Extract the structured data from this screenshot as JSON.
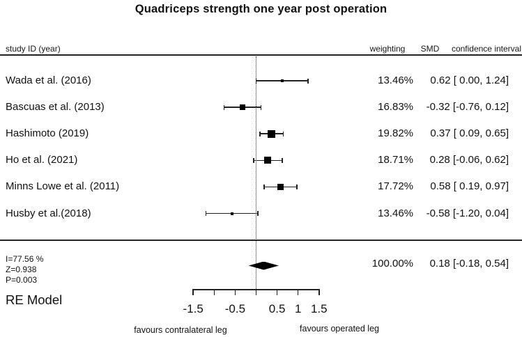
{
  "title": "Quadriceps strength one year post operation",
  "columns": {
    "study": "study ID (year)",
    "weighting": "weighting",
    "smd": "SMD",
    "ci": "confidence interval"
  },
  "chart_data": {
    "type": "scatter",
    "subtype": "forest-plot",
    "title": "Quadriceps strength one year post operation",
    "xlabel": "",
    "ylabel": "",
    "x_axis": {
      "range": [
        -1.5,
        1.5
      ],
      "ticks": [
        -1.5,
        -1,
        -0.5,
        0,
        0.5,
        1,
        1.5
      ],
      "tick_labels": [
        {
          "value": -1.5,
          "label": "-1.5"
        },
        {
          "value": -0.5,
          "label": "-0.5"
        },
        {
          "value": 0.5,
          "label": "0.5"
        },
        {
          "value": 1,
          "label": "1"
        },
        {
          "value": 1.5,
          "label": "1.5"
        }
      ],
      "reference_line": 0,
      "left_annotation": "favours contralateral leg",
      "right_annotation": "favours operated leg"
    },
    "studies": [
      {
        "label": "Wada et al. (2016)",
        "weighting": "13.46%",
        "weight_pct": 13.46,
        "smd": 0.62,
        "ci_low": 0.0,
        "ci_high": 1.24,
        "estimate_label": "0.62 [ 0.00, 1.24]"
      },
      {
        "label": "Bascuas et al. (2013)",
        "weighting": "16.83%",
        "weight_pct": 16.83,
        "smd": -0.32,
        "ci_low": -0.76,
        "ci_high": 0.12,
        "estimate_label": "-0.32 [-0.76, 0.12]"
      },
      {
        "label": "Hashimoto (2019)",
        "weighting": "19.82%",
        "weight_pct": 19.82,
        "smd": 0.37,
        "ci_low": 0.09,
        "ci_high": 0.65,
        "estimate_label": "0.37 [ 0.09, 0.65]"
      },
      {
        "label": "Ho et al. (2021)",
        "weighting": "18.71%",
        "weight_pct": 18.71,
        "smd": 0.28,
        "ci_low": -0.06,
        "ci_high": 0.62,
        "estimate_label": "0.28 [-0.06, 0.62]"
      },
      {
        "label": "Minns Lowe et al. (2011)",
        "weighting": "17.72%",
        "weight_pct": 17.72,
        "smd": 0.58,
        "ci_low": 0.19,
        "ci_high": 0.97,
        "estimate_label": "0.58 [ 0.19, 0.97]"
      },
      {
        "label": "Husby et al.(2018)",
        "weighting": "13.46%",
        "weight_pct": 13.46,
        "smd": -0.58,
        "ci_low": -1.2,
        "ci_high": 0.04,
        "estimate_label": "-0.58 [-1.20, 0.04]"
      }
    ],
    "summary": {
      "model_label": "RE Model",
      "weighting": "100.00%",
      "weight_pct": 100.0,
      "smd": 0.18,
      "ci_low": -0.18,
      "ci_high": 0.54,
      "estimate_label": "0.18 [-0.18, 0.54]",
      "stats": [
        "I=77.56 %",
        "Z=0.938",
        "P=0.003"
      ]
    }
  }
}
